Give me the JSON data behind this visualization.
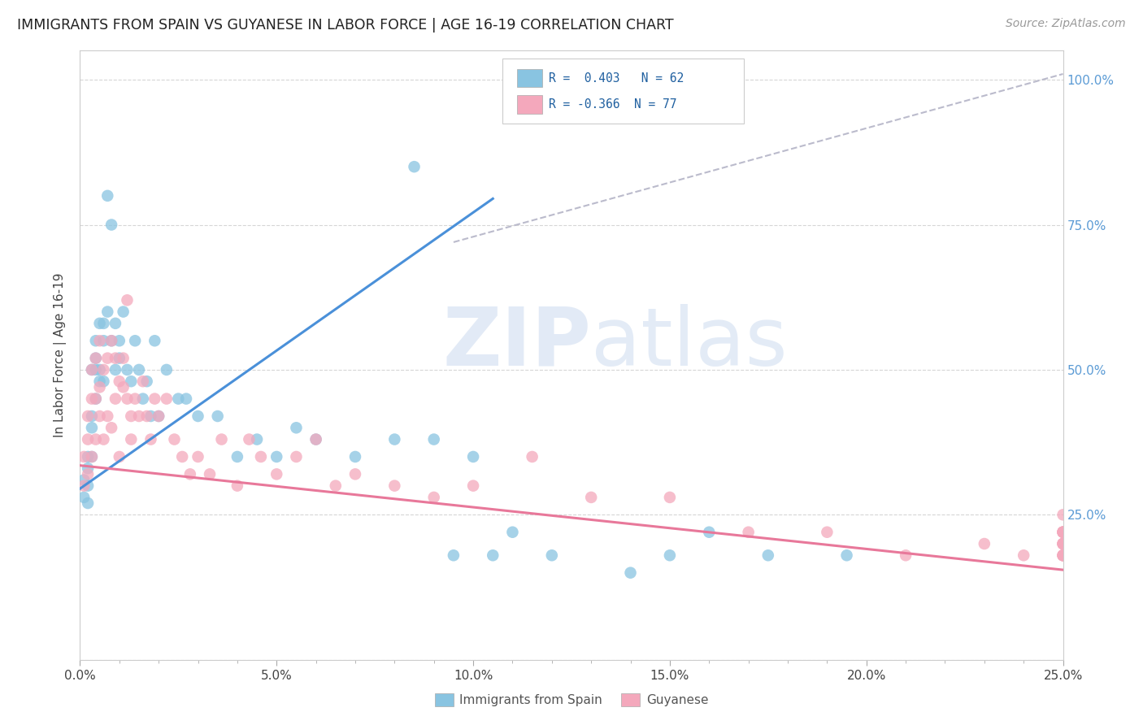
{
  "title": "IMMIGRANTS FROM SPAIN VS GUYANESE IN LABOR FORCE | AGE 16-19 CORRELATION CHART",
  "source": "Source: ZipAtlas.com",
  "ylabel": "In Labor Force | Age 16-19",
  "x_tick_labels": [
    "0.0%",
    "",
    "",
    "",
    "",
    "5.0%",
    "",
    "",
    "",
    "",
    "10.0%",
    "",
    "",
    "",
    "",
    "15.0%",
    "",
    "",
    "",
    "",
    "20.0%",
    "",
    "",
    "",
    "",
    "25.0%"
  ],
  "x_tick_values": [
    0.0,
    0.01,
    0.02,
    0.03,
    0.04,
    0.05,
    0.06,
    0.07,
    0.08,
    0.09,
    0.1,
    0.11,
    0.12,
    0.13,
    0.14,
    0.15,
    0.16,
    0.17,
    0.18,
    0.19,
    0.2,
    0.21,
    0.22,
    0.23,
    0.24,
    0.25
  ],
  "x_major_ticks": [
    0.0,
    0.05,
    0.1,
    0.15,
    0.2,
    0.25
  ],
  "x_major_labels": [
    "0.0%",
    "5.0%",
    "10.0%",
    "15.0%",
    "20.0%",
    "25.0%"
  ],
  "y_tick_labels": [
    "25.0%",
    "50.0%",
    "75.0%",
    "100.0%"
  ],
  "y_tick_values": [
    0.25,
    0.5,
    0.75,
    1.0
  ],
  "xlim": [
    0.0,
    0.25
  ],
  "ylim": [
    0.0,
    1.05
  ],
  "watermark_zip": "ZIP",
  "watermark_atlas": "atlas",
  "legend_r1": "R =  0.403",
  "legend_n1": "N = 62",
  "legend_r2": "R = -0.366",
  "legend_n2": "N = 77",
  "color_blue": "#89c4e1",
  "color_pink": "#f4a8bc",
  "line_blue": "#4a90d9",
  "line_pink": "#e8789a",
  "line_dashed_color": "#bbbbcc",
  "blue_line_x": [
    0.0,
    0.105
  ],
  "blue_line_y": [
    0.295,
    0.795
  ],
  "pink_line_x": [
    0.0,
    0.25
  ],
  "pink_line_y": [
    0.335,
    0.155
  ],
  "dashed_line_x": [
    0.095,
    0.25
  ],
  "dashed_line_y": [
    0.72,
    1.01
  ],
  "legend_label_blue": "Immigrants from Spain",
  "legend_label_pink": "Guyanese",
  "blue_scatter_x": [
    0.001,
    0.001,
    0.002,
    0.002,
    0.002,
    0.002,
    0.003,
    0.003,
    0.003,
    0.003,
    0.004,
    0.004,
    0.004,
    0.004,
    0.005,
    0.005,
    0.005,
    0.006,
    0.006,
    0.006,
    0.007,
    0.007,
    0.008,
    0.008,
    0.009,
    0.009,
    0.01,
    0.01,
    0.011,
    0.012,
    0.013,
    0.014,
    0.015,
    0.016,
    0.017,
    0.018,
    0.019,
    0.02,
    0.022,
    0.025,
    0.027,
    0.03,
    0.035,
    0.04,
    0.045,
    0.05,
    0.055,
    0.06,
    0.07,
    0.08,
    0.085,
    0.09,
    0.095,
    0.1,
    0.105,
    0.11,
    0.12,
    0.14,
    0.15,
    0.16,
    0.175,
    0.195
  ],
  "blue_scatter_y": [
    0.31,
    0.28,
    0.35,
    0.3,
    0.27,
    0.33,
    0.4,
    0.35,
    0.42,
    0.5,
    0.45,
    0.5,
    0.55,
    0.52,
    0.58,
    0.5,
    0.48,
    0.55,
    0.48,
    0.58,
    0.6,
    0.8,
    0.55,
    0.75,
    0.58,
    0.5,
    0.55,
    0.52,
    0.6,
    0.5,
    0.48,
    0.55,
    0.5,
    0.45,
    0.48,
    0.42,
    0.55,
    0.42,
    0.5,
    0.45,
    0.45,
    0.42,
    0.42,
    0.35,
    0.38,
    0.35,
    0.4,
    0.38,
    0.35,
    0.38,
    0.85,
    0.38,
    0.18,
    0.35,
    0.18,
    0.22,
    0.18,
    0.15,
    0.18,
    0.22,
    0.18,
    0.18
  ],
  "pink_scatter_x": [
    0.001,
    0.001,
    0.002,
    0.002,
    0.002,
    0.003,
    0.003,
    0.003,
    0.004,
    0.004,
    0.004,
    0.005,
    0.005,
    0.005,
    0.006,
    0.006,
    0.007,
    0.007,
    0.008,
    0.008,
    0.009,
    0.009,
    0.01,
    0.01,
    0.011,
    0.011,
    0.012,
    0.012,
    0.013,
    0.013,
    0.014,
    0.015,
    0.016,
    0.017,
    0.018,
    0.019,
    0.02,
    0.022,
    0.024,
    0.026,
    0.028,
    0.03,
    0.033,
    0.036,
    0.04,
    0.043,
    0.046,
    0.05,
    0.055,
    0.06,
    0.065,
    0.07,
    0.08,
    0.09,
    0.1,
    0.115,
    0.13,
    0.15,
    0.17,
    0.19,
    0.21,
    0.23,
    0.24,
    0.25,
    0.25,
    0.25,
    0.25,
    0.25,
    0.25,
    0.25,
    0.25,
    0.25,
    0.25,
    0.25,
    0.25,
    0.25,
    0.25
  ],
  "pink_scatter_y": [
    0.35,
    0.3,
    0.38,
    0.32,
    0.42,
    0.5,
    0.45,
    0.35,
    0.52,
    0.45,
    0.38,
    0.55,
    0.47,
    0.42,
    0.5,
    0.38,
    0.52,
    0.42,
    0.55,
    0.4,
    0.52,
    0.45,
    0.48,
    0.35,
    0.52,
    0.47,
    0.45,
    0.62,
    0.42,
    0.38,
    0.45,
    0.42,
    0.48,
    0.42,
    0.38,
    0.45,
    0.42,
    0.45,
    0.38,
    0.35,
    0.32,
    0.35,
    0.32,
    0.38,
    0.3,
    0.38,
    0.35,
    0.32,
    0.35,
    0.38,
    0.3,
    0.32,
    0.3,
    0.28,
    0.3,
    0.35,
    0.28,
    0.28,
    0.22,
    0.22,
    0.18,
    0.2,
    0.18,
    0.2,
    0.22,
    0.18,
    0.25,
    0.2,
    0.22,
    0.18,
    0.22,
    0.2,
    0.18,
    0.22,
    0.18,
    0.2,
    0.22
  ]
}
